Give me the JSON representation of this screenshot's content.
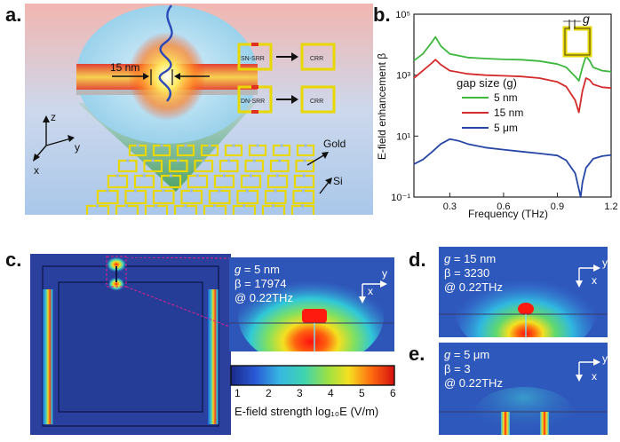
{
  "panel_labels": {
    "a": "a.",
    "b": "b.",
    "c": "c.",
    "d": "d.",
    "e": "e."
  },
  "panel_a": {
    "gap_label": "15 nm",
    "flow1_left": "SN-SRR",
    "flow1_right": "CRR",
    "flow2_left": "DN-SRR",
    "flow2_right": "CRR",
    "axis_z": "z",
    "axis_y": "y",
    "axis_x": "x",
    "gold_label": "Gold",
    "si_label": "Si"
  },
  "panel_b": {
    "ylabel": "E-field enhancement β",
    "xlabel": "Frequency (THz)",
    "legend_title": "gap size (g)",
    "inset_label": "g"
  },
  "chart_data": {
    "type": "line",
    "title": "",
    "xlabel": "Frequency (THz)",
    "ylabel": "E-field enhancement β",
    "xlim": [
      0.1,
      1.2
    ],
    "ylim": [
      0.1,
      100000
    ],
    "yscale": "log",
    "xticks": [
      "0.3",
      "0.6",
      "0.9",
      "1.2"
    ],
    "yticks": [
      "10⁻¹",
      "10¹",
      "10³",
      "10⁵"
    ],
    "legend_title": "gap size (g)",
    "legend_position": "center-right",
    "series": [
      {
        "name": "5 nm",
        "color": "#3db83d",
        "x": [
          0.1,
          0.15,
          0.2,
          0.22,
          0.25,
          0.3,
          0.4,
          0.5,
          0.6,
          0.7,
          0.8,
          0.9,
          0.95,
          1.0,
          1.02,
          1.04,
          1.06,
          1.08,
          1.1,
          1.15,
          1.2
        ],
        "y": [
          3000,
          5000,
          12000,
          17974,
          9000,
          5000,
          3800,
          3500,
          3300,
          3200,
          2900,
          2300,
          1800,
          900,
          650,
          1800,
          4200,
          3000,
          1800,
          1400,
          1300
        ]
      },
      {
        "name": "15 nm",
        "color": "#d42a2a",
        "x": [
          0.1,
          0.15,
          0.2,
          0.22,
          0.25,
          0.3,
          0.4,
          0.5,
          0.6,
          0.7,
          0.8,
          0.9,
          0.95,
          1.0,
          1.02,
          1.04,
          1.06,
          1.08,
          1.1,
          1.15,
          1.2
        ],
        "y": [
          800,
          1400,
          2500,
          3230,
          2200,
          1400,
          1100,
          1000,
          950,
          900,
          800,
          600,
          420,
          150,
          60,
          300,
          800,
          700,
          500,
          400,
          380
        ]
      },
      {
        "name": "5 μm",
        "color": "#2646a6",
        "x": [
          0.1,
          0.15,
          0.2,
          0.25,
          0.3,
          0.35,
          0.4,
          0.5,
          0.6,
          0.7,
          0.8,
          0.9,
          0.95,
          1.0,
          1.02,
          1.03,
          1.04,
          1.06,
          1.1,
          1.15,
          1.2
        ],
        "y": [
          1.2,
          1.7,
          3,
          5.5,
          8,
          7,
          5.5,
          4.2,
          3.6,
          3.1,
          2.7,
          2.3,
          1.6,
          0.6,
          0.18,
          0.1,
          0.3,
          0.9,
          1.8,
          2.2,
          2.4
        ]
      }
    ]
  },
  "panel_c": {
    "inset_g": "g",
    "inset_g_val": "= 5 nm",
    "inset_beta": "β",
    "inset_beta_val": "= 17974",
    "inset_freq": "@ 0.22THz",
    "colorbar_ticks": [
      "1",
      "2",
      "3",
      "4",
      "5",
      "6"
    ],
    "colorbar_label": "E-field strength log₁₀E (V/m)",
    "axis_y": "y",
    "axis_x": "x"
  },
  "panel_d": {
    "g": "g",
    "g_val": "= 15 nm",
    "beta": "β",
    "beta_val": "= 3230",
    "freq": "@ 0.22THz",
    "axis_y": "y",
    "axis_x": "x"
  },
  "panel_e": {
    "g": "g",
    "g_val": "= 5 μm",
    "beta": "β",
    "beta_val": "= 3",
    "freq": "@ 0.22THz",
    "axis_y": "y",
    "axis_x": "x"
  }
}
